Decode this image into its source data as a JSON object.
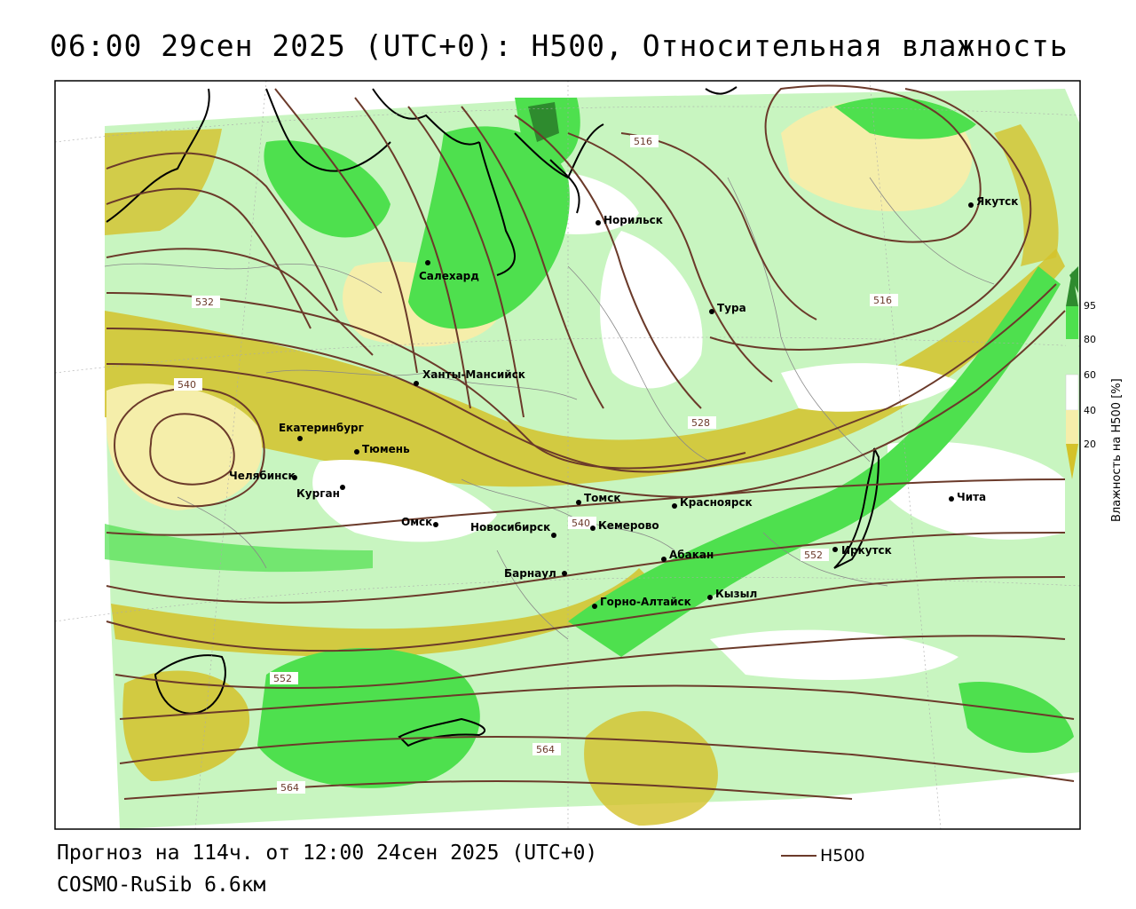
{
  "title": "06:00 29сен 2025 (UTC+0): H500, Относительная влажность",
  "footer": {
    "forecast": "Прогноз на 114ч. от 12:00 24сен 2025 (UTC+0)",
    "model": "COSMO-RuSib 6.6км",
    "legend_h500": "H500"
  },
  "colorbar": {
    "title": "Влажность на H500 [%]",
    "ticks": [
      "95",
      "80",
      "60",
      "40",
      "20"
    ],
    "colors": {
      "c95": "#2e8b2e",
      "c80": "#4ee04e",
      "c60": "#c8f5c0",
      "c40": "#ffffff",
      "c20": "#f5eeaa",
      "c0": "#d4c22a"
    }
  },
  "isohypse_color": "#6b3a2a",
  "isohypse_labels": [
    "516",
    "516",
    "528",
    "532",
    "540",
    "540",
    "552",
    "552",
    "564",
    "564"
  ],
  "cities": [
    {
      "name": "Норильск"
    },
    {
      "name": "Якутск"
    },
    {
      "name": "Салехард"
    },
    {
      "name": "Тура"
    },
    {
      "name": "Ханты-Мансийск"
    },
    {
      "name": "Екатеринбург"
    },
    {
      "name": "Тюмень"
    },
    {
      "name": "Челябинск"
    },
    {
      "name": "Курган"
    },
    {
      "name": "Омск"
    },
    {
      "name": "Новосибирск"
    },
    {
      "name": "Томск"
    },
    {
      "name": "Кемерово"
    },
    {
      "name": "Красноярск"
    },
    {
      "name": "Абакан"
    },
    {
      "name": "Иркутск"
    },
    {
      "name": "Чита"
    },
    {
      "name": "Барнаул"
    },
    {
      "name": "Горно-Алтайск"
    },
    {
      "name": "Кызыл"
    }
  ]
}
